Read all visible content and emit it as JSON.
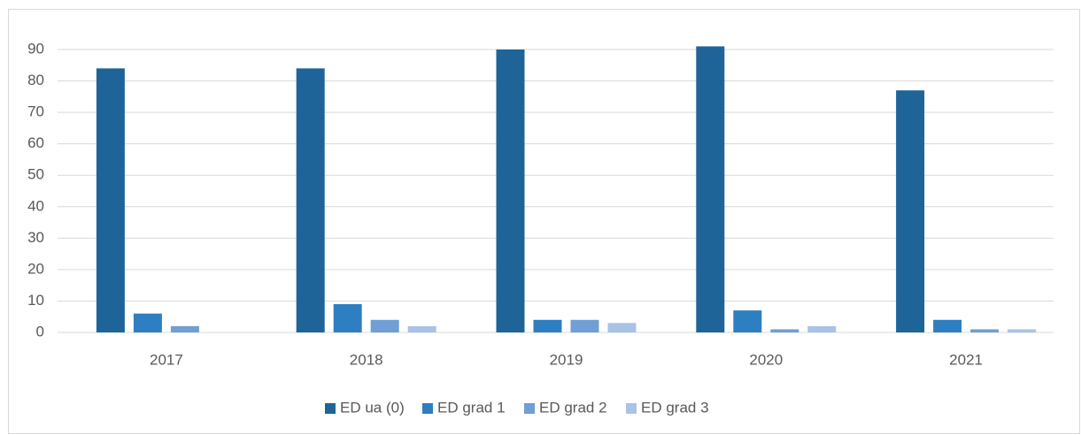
{
  "chart_data": {
    "type": "bar",
    "categories": [
      "2017",
      "2018",
      "2019",
      "2020",
      "2021"
    ],
    "series": [
      {
        "name": "ED ua (0)",
        "color": "#1f6499",
        "values": [
          84,
          84,
          90,
          91,
          77
        ]
      },
      {
        "name": "ED grad 1",
        "color": "#2e7fc1",
        "values": [
          6,
          9,
          4,
          7,
          4
        ]
      },
      {
        "name": "ED grad 2",
        "color": "#6f9fd4",
        "values": [
          2,
          4,
          4,
          1,
          1
        ]
      },
      {
        "name": "ED grad 3",
        "color": "#a9c3e6",
        "values": [
          0,
          2,
          3,
          2,
          1
        ]
      }
    ],
    "ylim": [
      0,
      90
    ],
    "yticks": [
      0,
      10,
      20,
      30,
      40,
      50,
      60,
      70,
      80,
      90
    ],
    "grid": true,
    "legend": "bottom"
  }
}
